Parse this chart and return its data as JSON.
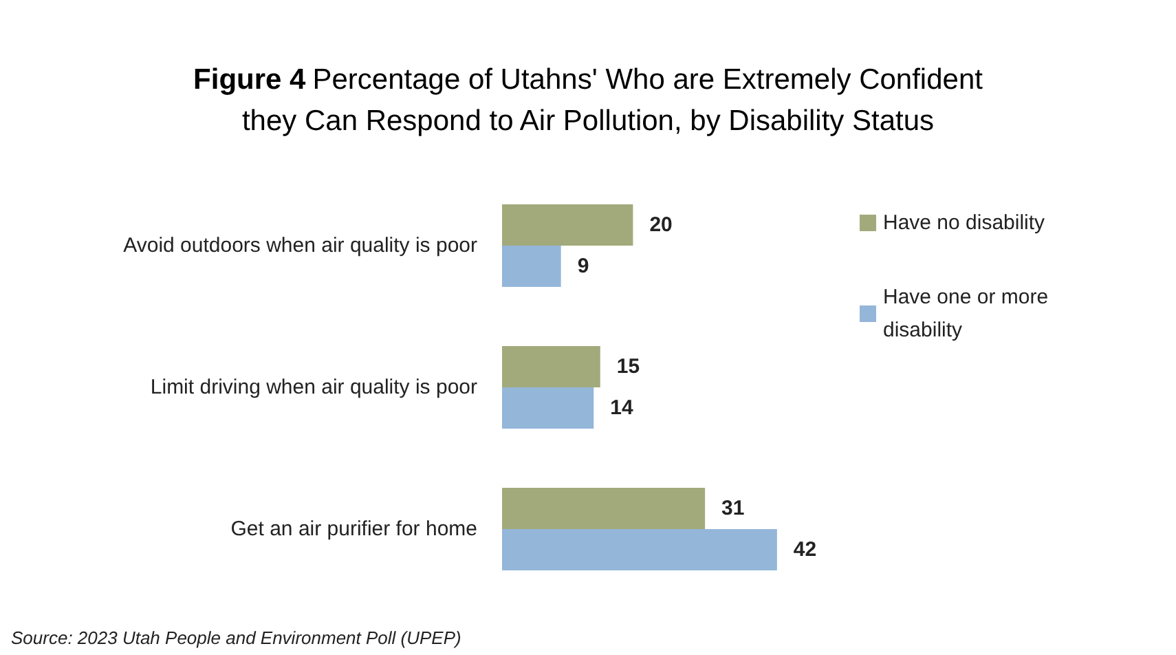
{
  "chart_data": {
    "type": "bar",
    "orientation": "horizontal",
    "title": "Figure 4 Percentage of Utahns' Who are Extremely Confident they Can Respond to Air Pollution, by Disability Status",
    "categories": [
      "Avoid outdoors when air quality is poor",
      "Limit driving when air quality is poor",
      "Get an air purifier for home"
    ],
    "series": [
      {
        "name": "Have no disability",
        "color": "#a2aa7c",
        "values": [
          20,
          15,
          31
        ]
      },
      {
        "name": "Have one or more disability",
        "color": "#94b6d9",
        "values": [
          9,
          14,
          42
        ]
      }
    ],
    "data_labels": true,
    "legend": "right",
    "annotations": [
      "Source: 2023 Utah People and Environment Poll (UPEP)"
    ]
  }
}
